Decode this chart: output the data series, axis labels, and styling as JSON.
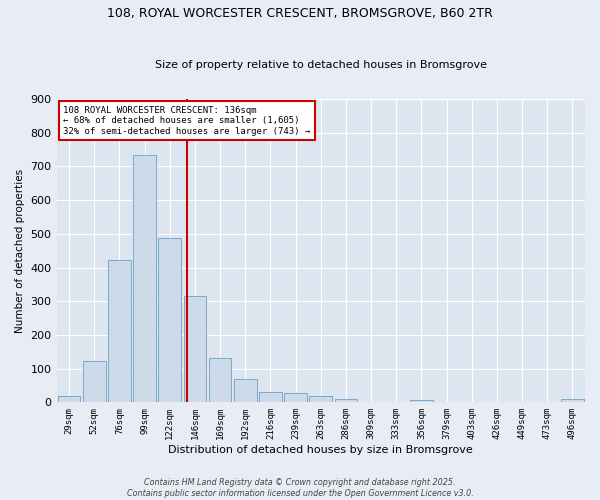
{
  "title1": "108, ROYAL WORCESTER CRESCENT, BROMSGROVE, B60 2TR",
  "title2": "Size of property relative to detached houses in Bromsgrove",
  "xlabel": "Distribution of detached houses by size in Bromsgrove",
  "ylabel": "Number of detached properties",
  "bar_color": "#cddaea",
  "bar_edge_color": "#7aaac8",
  "bg_color": "#dde6f0",
  "fig_color": "#e8edf5",
  "grid_color": "#ffffff",
  "categories": [
    "29sqm",
    "52sqm",
    "76sqm",
    "99sqm",
    "122sqm",
    "146sqm",
    "169sqm",
    "192sqm",
    "216sqm",
    "239sqm",
    "263sqm",
    "286sqm",
    "309sqm",
    "333sqm",
    "356sqm",
    "379sqm",
    "403sqm",
    "426sqm",
    "449sqm",
    "473sqm",
    "496sqm"
  ],
  "values": [
    18,
    122,
    422,
    735,
    488,
    315,
    133,
    68,
    30,
    28,
    18,
    10,
    0,
    0,
    8,
    0,
    0,
    0,
    0,
    0,
    10
  ],
  "vline_x": 4.68,
  "vline_color": "#cc0000",
  "annotation_text": "108 ROYAL WORCESTER CRESCENT: 136sqm\n← 68% of detached houses are smaller (1,605)\n32% of semi-detached houses are larger (743) →",
  "annotation_box_color": "#ffffff",
  "annotation_box_edge": "#cc0000",
  "ylim": [
    0,
    900
  ],
  "yticks": [
    0,
    100,
    200,
    300,
    400,
    500,
    600,
    700,
    800,
    900
  ],
  "footer1": "Contains HM Land Registry data © Crown copyright and database right 2025.",
  "footer2": "Contains public sector information licensed under the Open Government Licence v3.0."
}
